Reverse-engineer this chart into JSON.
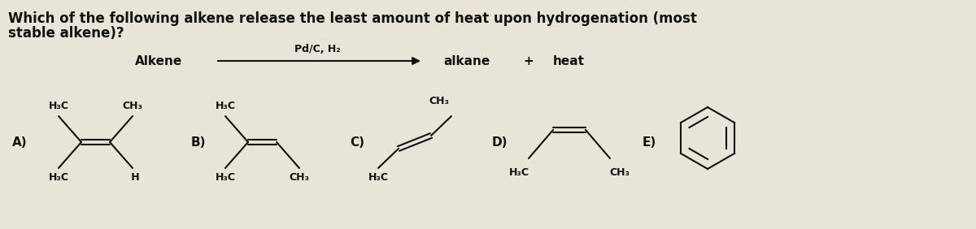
{
  "title_line1": "Which of the following alkene release the least amount of heat upon hydrogenation (most",
  "title_line2": "stable alkene)?",
  "reaction_label_alkene": "Alkene",
  "reaction_label_catalyst": "Pd/C, H₂",
  "reaction_label_alkane": "alkane",
  "reaction_label_plus": "+",
  "reaction_label_heat": "heat",
  "background": "#e8e4d8",
  "text_color": "#111111",
  "title_fontsize": 12,
  "label_fontsize": 11,
  "small_fontsize": 9
}
